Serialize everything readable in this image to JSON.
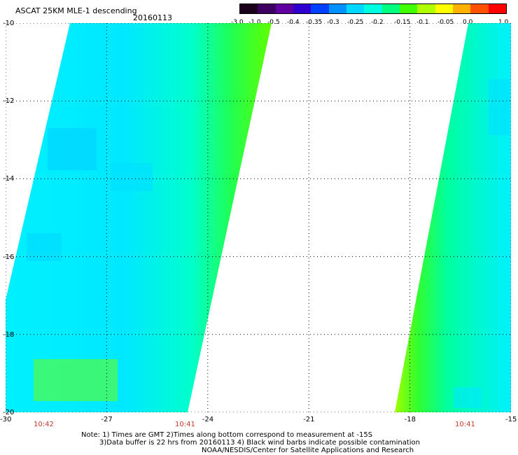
{
  "header": {
    "title": "ASCAT 25KM MLE-1 descending",
    "date": "20160113"
  },
  "colorbar": {
    "labels": [
      "-3.0",
      "-1.0",
      "-0.5",
      "-0.4",
      "-0.35",
      "-0.3",
      "-0.25",
      "-0.2",
      "-0.15",
      "-0.1",
      "-0.05",
      "0.0",
      "1.0"
    ],
    "colors": [
      "#1a001a",
      "#3b0060",
      "#6000a0",
      "#3000d0",
      "#0040ff",
      "#0090ff",
      "#00d8ff",
      "#00ffe0",
      "#00ff80",
      "#40ff00",
      "#b0ff00",
      "#ffff00",
      "#ffb000",
      "#ff5000",
      "#ff0000"
    ]
  },
  "map": {
    "lat_labels": [
      "-10",
      "-12",
      "-14",
      "-16",
      "-18",
      "-20"
    ],
    "lon_labels": [
      "-30",
      "-27",
      "-24",
      "-21",
      "-18",
      "-15"
    ],
    "lat_range": [
      -20,
      -10
    ],
    "lon_range": [
      -30,
      -15
    ],
    "grid": true,
    "swath_times": [
      "10:42",
      "10:41",
      "10:41"
    ],
    "background": "#ffffff",
    "ocean_color": "#00ffff",
    "edge_color": "#00ff00"
  },
  "footer": {
    "note1": "Note: 1) Times are GMT 2)Times along bottom correspond to measurement at -15S",
    "note2": "3)Data buffer is 22 hrs from 20160113 4) Black wind barbs indicate possible contamination",
    "note3": "NOAA/NESDIS/Center for Satellite Applications and Research"
  }
}
